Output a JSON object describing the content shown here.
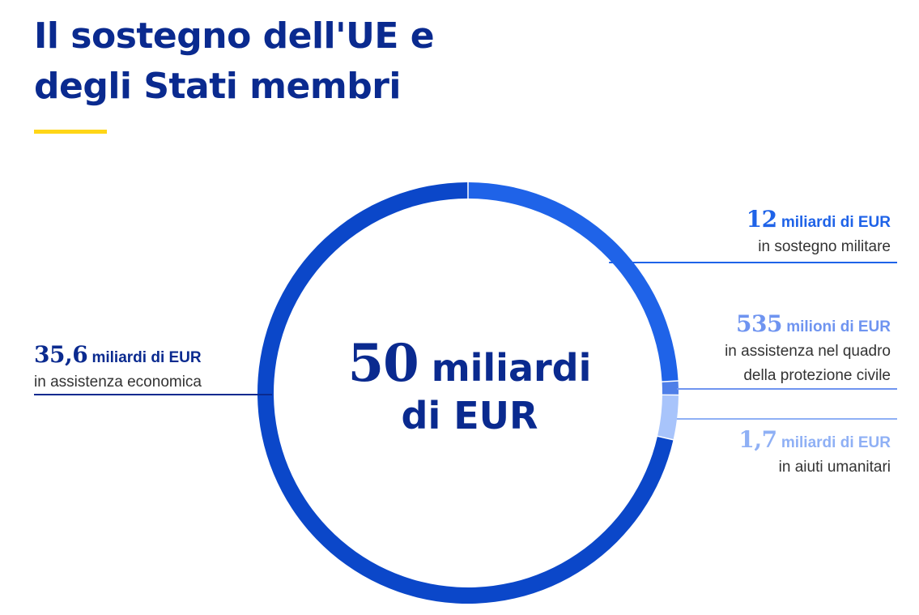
{
  "title": {
    "line1": "Il sostegno dell'UE e",
    "line2": "degli Stati membri"
  },
  "colors": {
    "title": "#0a2a8f",
    "accent": "#ffd617"
  },
  "chart_data": {
    "type": "pie",
    "variant": "donut",
    "total_label": {
      "number": "50",
      "unit_line1": "miliardi",
      "unit_line2": "di EUR"
    },
    "slices": [
      {
        "value": 12,
        "unit": "billion EUR",
        "number_text": "12",
        "unit_text": "miliardi di EUR",
        "desc_lines": [
          "in sostegno militare"
        ],
        "color": "#1f63e8",
        "label_color": "#1f63e8"
      },
      {
        "value": 0.535,
        "unit": "billion EUR",
        "number_text": "535",
        "unit_text": "milioni di EUR",
        "desc_lines": [
          "in assistenza nel quadro",
          "della protezione civile"
        ],
        "color": "#4f7fe8",
        "label_color": "#6f94f0"
      },
      {
        "value": 1.7,
        "unit": "billion EUR",
        "number_text": "1,7",
        "unit_text": "miliardi di EUR",
        "desc_lines": [
          "in aiuti umanitari"
        ],
        "color": "#a8c4fb",
        "label_color": "#8fb0f5"
      },
      {
        "value": 35.6,
        "unit": "billion EUR",
        "number_text": "35,6",
        "unit_text": "miliardi di EUR",
        "desc_lines": [
          "in assistenza economica"
        ],
        "color": "#0b47c9",
        "label_color": "#0a2a8f"
      }
    ]
  }
}
